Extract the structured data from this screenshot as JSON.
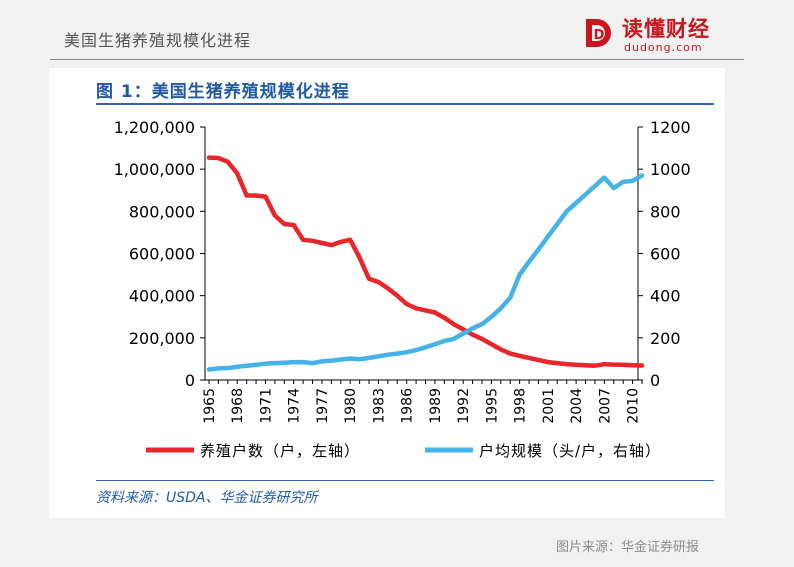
{
  "slide": {
    "title": "美国生猪养殖规模化进程",
    "image_source": "图片来源：华金证券研报"
  },
  "brand": {
    "logo_letter": "D",
    "name": "读懂财经",
    "domain": "dudong.com",
    "color": "#c8161d"
  },
  "figure": {
    "caption": "图 1：美国生猪养殖规模化进程",
    "source": "资料来源：USDA、华金证券研究所"
  },
  "chart_data": {
    "type": "line",
    "title": "美国生猪养殖规模化进程",
    "x": [
      1965,
      1966,
      1967,
      1968,
      1969,
      1970,
      1971,
      1972,
      1973,
      1974,
      1975,
      1976,
      1977,
      1978,
      1979,
      1980,
      1981,
      1982,
      1983,
      1984,
      1985,
      1986,
      1987,
      1988,
      1989,
      1990,
      1991,
      1992,
      1993,
      1994,
      1995,
      1996,
      1997,
      1998,
      1999,
      2000,
      2001,
      2002,
      2003,
      2004,
      2005,
      2006,
      2007,
      2008,
      2009,
      2010,
      2011
    ],
    "x_tick_labels": [
      "1965",
      "1968",
      "1971",
      "1974",
      "1977",
      "1980",
      "1983",
      "1986",
      "1989",
      "1992",
      "1995",
      "1998",
      "2001",
      "2004",
      "2007",
      "2010"
    ],
    "x_range": [
      1965,
      2011
    ],
    "y_left": {
      "range": [
        0,
        1200000
      ],
      "ticks": [
        "0",
        "200,000",
        "400,000",
        "600,000",
        "800,000",
        "1,000,000",
        "1,200,000"
      ]
    },
    "y_right": {
      "range": [
        0,
        1200
      ],
      "ticks": [
        "0",
        "200",
        "400",
        "600",
        "800",
        "1000",
        "1200"
      ]
    },
    "series": [
      {
        "name": "养殖户数（户，左轴）",
        "axis": "left",
        "color": "#e8262c",
        "values": [
          1055000,
          1053000,
          1035000,
          980000,
          875000,
          875000,
          870000,
          780000,
          740000,
          735000,
          665000,
          660000,
          650000,
          640000,
          655000,
          665000,
          580000,
          480000,
          465000,
          435000,
          400000,
          360000,
          340000,
          330000,
          320000,
          295000,
          265000,
          240000,
          215000,
          195000,
          170000,
          145000,
          125000,
          115000,
          105000,
          95000,
          85000,
          80000,
          75000,
          72000,
          70000,
          68000,
          75000,
          73000,
          72000,
          70000,
          69000
        ]
      },
      {
        "name": "户均规模（头/户，右轴）",
        "axis": "right",
        "color": "#45b3e7",
        "values": [
          50,
          55,
          57,
          62,
          68,
          72,
          78,
          80,
          82,
          85,
          85,
          80,
          88,
          92,
          97,
          102,
          98,
          105,
          112,
          120,
          125,
          132,
          142,
          155,
          170,
          185,
          195,
          220,
          245,
          265,
          300,
          340,
          390,
          500,
          560,
          620,
          680,
          740,
          800,
          840,
          880,
          920,
          960,
          910,
          940,
          945,
          970
        ]
      }
    ]
  }
}
